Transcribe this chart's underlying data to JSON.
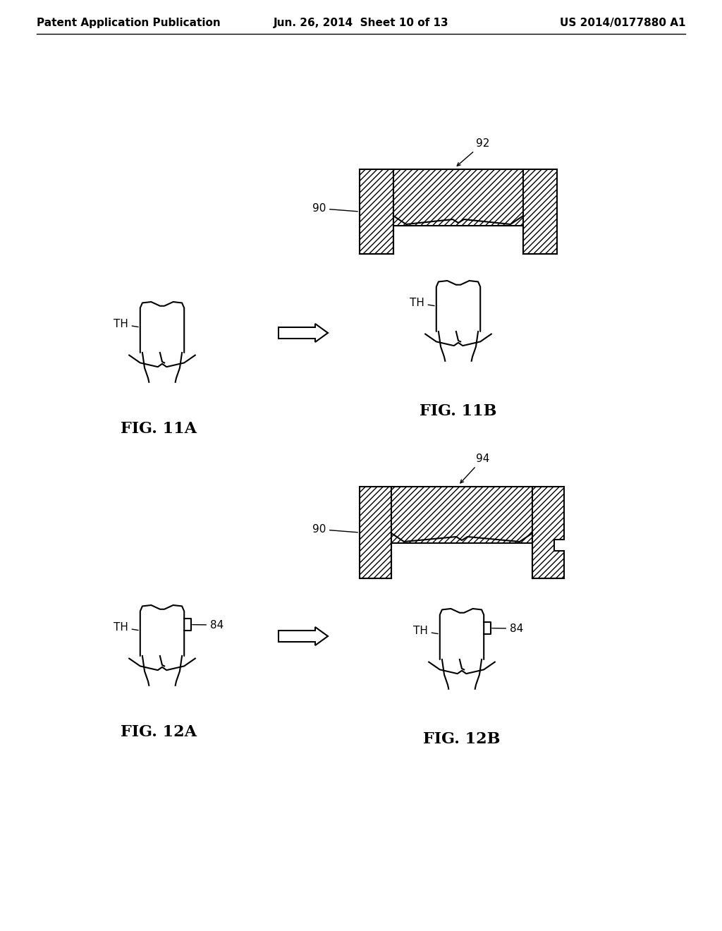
{
  "bg_color": "#ffffff",
  "line_color": "#000000",
  "header_left": "Patent Application Publication",
  "header_mid": "Jun. 26, 2014  Sheet 10 of 13",
  "header_right": "US 2014/0177880 A1"
}
